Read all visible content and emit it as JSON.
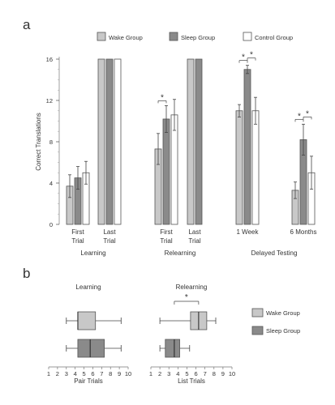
{
  "colors": {
    "wake": "#c8c8c8",
    "sleep": "#8a8a8a",
    "control": "#ffffff",
    "stroke": "#555555"
  },
  "panel_a_label": "a",
  "panel_b_label": "b",
  "chart_data": [
    {
      "type": "bar",
      "panel": "a",
      "ylabel": "Correct Translations",
      "ylim": [
        0,
        16
      ],
      "yticks": [
        0,
        4,
        8,
        12,
        16
      ],
      "legend": [
        {
          "key": "wake",
          "label": "Wake Group"
        },
        {
          "key": "sleep",
          "label": "Sleep Group"
        },
        {
          "key": "control",
          "label": "Control Group"
        }
      ],
      "groups": [
        {
          "label": "Learning",
          "conditions": [
            {
              "label": "First\nTrial",
              "wake": 3.7,
              "sleep": 4.5,
              "control": 5.0,
              "err_wake": 1.1,
              "err_sleep": 1.1,
              "err_control": 1.1
            },
            {
              "label": "Last\nTrial",
              "wake": 16,
              "sleep": 16,
              "control": 16
            }
          ]
        },
        {
          "label": "Relearning",
          "conditions": [
            {
              "label": "First\nTrial",
              "wake": 7.3,
              "sleep": 10.2,
              "control": 10.6,
              "err_wake": 1.5,
              "err_sleep": 1.3,
              "err_control": 1.5
            },
            {
              "label": "Last\nTrial",
              "wake": 16,
              "sleep": 16
            }
          ]
        },
        {
          "label": "Delayed Testing",
          "conditions": [
            {
              "label": "1 Week",
              "wake": 11.0,
              "sleep": 15.0,
              "control": 11.0,
              "err_wake": 0.6,
              "err_sleep": 0.4,
              "err_control": 1.3
            },
            {
              "label": "6 Months",
              "wake": 3.3,
              "sleep": 8.2,
              "control": 5.0,
              "err_wake": 0.8,
              "err_sleep": 1.5,
              "err_control": 1.6
            }
          ]
        }
      ],
      "significance": [
        {
          "group": 1,
          "condition": 0,
          "pair": [
            "wake",
            "sleep"
          ],
          "label": "*"
        },
        {
          "group": 2,
          "condition": 0,
          "pair": [
            "wake",
            "sleep"
          ],
          "label": "*"
        },
        {
          "group": 2,
          "condition": 0,
          "pair": [
            "sleep",
            "control"
          ],
          "label": "*"
        },
        {
          "group": 2,
          "condition": 1,
          "pair": [
            "wake",
            "sleep"
          ],
          "label": "*"
        },
        {
          "group": 2,
          "condition": 1,
          "pair": [
            "sleep",
            "control"
          ],
          "label": "*"
        }
      ]
    },
    {
      "type": "boxplot",
      "panel": "b",
      "title": "Learning",
      "xlabel": "Pair Trials",
      "xlim": [
        1,
        10
      ],
      "xticks": [
        1,
        2,
        3,
        4,
        5,
        6,
        7,
        8,
        9,
        10
      ],
      "series": [
        {
          "key": "wake",
          "min": 3,
          "q1": 4.3,
          "median": 4.3,
          "q3": 6.3,
          "max": 9.2
        },
        {
          "key": "sleep",
          "min": 3,
          "q1": 4.3,
          "median": 5.7,
          "q3": 7.3,
          "max": 9.2
        }
      ]
    },
    {
      "type": "boxplot",
      "panel": "b",
      "title": "Relearning",
      "xlabel": "List Trials",
      "xlim": [
        1,
        10
      ],
      "xticks": [
        1,
        2,
        3,
        4,
        5,
        6,
        7,
        8,
        9,
        10
      ],
      "series": [
        {
          "key": "wake",
          "min": 2,
          "q1": 5.4,
          "median": 6.3,
          "q3": 7.2,
          "max": 8.2
        },
        {
          "key": "sleep",
          "min": 2,
          "q1": 2.6,
          "median": 3.6,
          "q3": 4.2,
          "max": 5.3
        }
      ],
      "significance": {
        "label": "*"
      }
    }
  ],
  "legend_b": [
    {
      "key": "wake",
      "label": "Wake Group"
    },
    {
      "key": "sleep",
      "label": "Sleep Group"
    }
  ]
}
